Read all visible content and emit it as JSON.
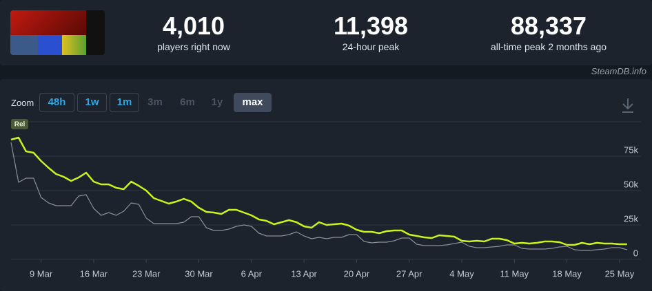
{
  "stats": [
    {
      "value": "4,010",
      "label": "players right now"
    },
    {
      "value": "11,398",
      "label": "24-hour peak"
    },
    {
      "value": "88,337",
      "label": "all-time peak 2 months ago"
    }
  ],
  "watermark": "SteamDB.info",
  "zoom": {
    "label": "Zoom",
    "options": [
      "48h",
      "1w",
      "1m",
      "3m",
      "6m",
      "1y",
      "max"
    ]
  },
  "chart_data": {
    "type": "line",
    "annotation": "Rel",
    "categories": [
      null,
      null,
      null,
      null,
      "9 Mar",
      null,
      null,
      null,
      null,
      null,
      null,
      "16 Mar",
      null,
      null,
      null,
      null,
      null,
      null,
      "23 Mar",
      null,
      null,
      null,
      null,
      null,
      null,
      "30 Mar",
      null,
      null,
      null,
      null,
      null,
      null,
      "6 Apr",
      null,
      null,
      null,
      null,
      null,
      null,
      "13 Apr",
      null,
      null,
      null,
      null,
      null,
      null,
      "20 Apr",
      null,
      null,
      null,
      null,
      null,
      null,
      "27 Apr",
      null,
      null,
      null,
      null,
      null,
      null,
      "4 May",
      null,
      null,
      null,
      null,
      null,
      null,
      "11 May",
      null,
      null,
      null,
      null,
      null,
      null,
      "18 May",
      null,
      null,
      null,
      null,
      null,
      null,
      "25 May",
      null
    ],
    "series": [
      {
        "color": "#8b9097",
        "values": [
          85000,
          56000,
          59000,
          59000,
          45000,
          41000,
          39000,
          39000,
          39000,
          46000,
          47000,
          37000,
          32000,
          34000,
          32000,
          35000,
          41000,
          40000,
          30000,
          26000,
          26000,
          26000,
          26000,
          27000,
          31000,
          31000,
          23000,
          21000,
          21000,
          22000,
          24000,
          25000,
          24000,
          19000,
          17000,
          17000,
          17000,
          18000,
          20000,
          17000,
          15000,
          16000,
          15000,
          16000,
          16000,
          18000,
          18000,
          13000,
          12000,
          12500,
          12500,
          13500,
          15500,
          15500,
          11000,
          10000,
          10000,
          10000,
          10500,
          11500,
          12500,
          9500,
          8500,
          8500,
          9000,
          9500,
          10500,
          10500,
          8000,
          7500,
          7500,
          7500,
          8000,
          9000,
          9500,
          7000,
          6500,
          6500,
          7000,
          7500,
          8500,
          8500,
          7000
        ]
      },
      {
        "color": "#c9f31d",
        "values": [
          87000,
          88500,
          78500,
          77500,
          71500,
          66500,
          62000,
          60000,
          57000,
          59500,
          63000,
          56500,
          54500,
          54500,
          52000,
          51000,
          56500,
          53500,
          50000,
          44500,
          42500,
          40500,
          42000,
          44000,
          42000,
          37500,
          34500,
          34000,
          33000,
          36000,
          36000,
          34000,
          32000,
          29000,
          28000,
          25500,
          27000,
          28500,
          27000,
          24000,
          23000,
          27000,
          25000,
          25500,
          26000,
          24500,
          21500,
          20000,
          20000,
          19000,
          20500,
          21000,
          21000,
          18000,
          17000,
          16000,
          15500,
          17500,
          17000,
          16500,
          13500,
          13000,
          13500,
          13000,
          15000,
          15000,
          14000,
          11500,
          12000,
          11500,
          12000,
          13000,
          13000,
          12500,
          10500,
          10500,
          12000,
          11000,
          12000,
          11500,
          11500,
          11000,
          11000
        ]
      }
    ],
    "ylim": [
      0,
      100000
    ],
    "yticks": [
      0,
      {
        "value": 25000,
        "label": "25k"
      },
      {
        "value": 50000,
        "label": "50k"
      },
      {
        "value": 75000,
        "label": "75k"
      }
    ],
    "grid": true
  }
}
